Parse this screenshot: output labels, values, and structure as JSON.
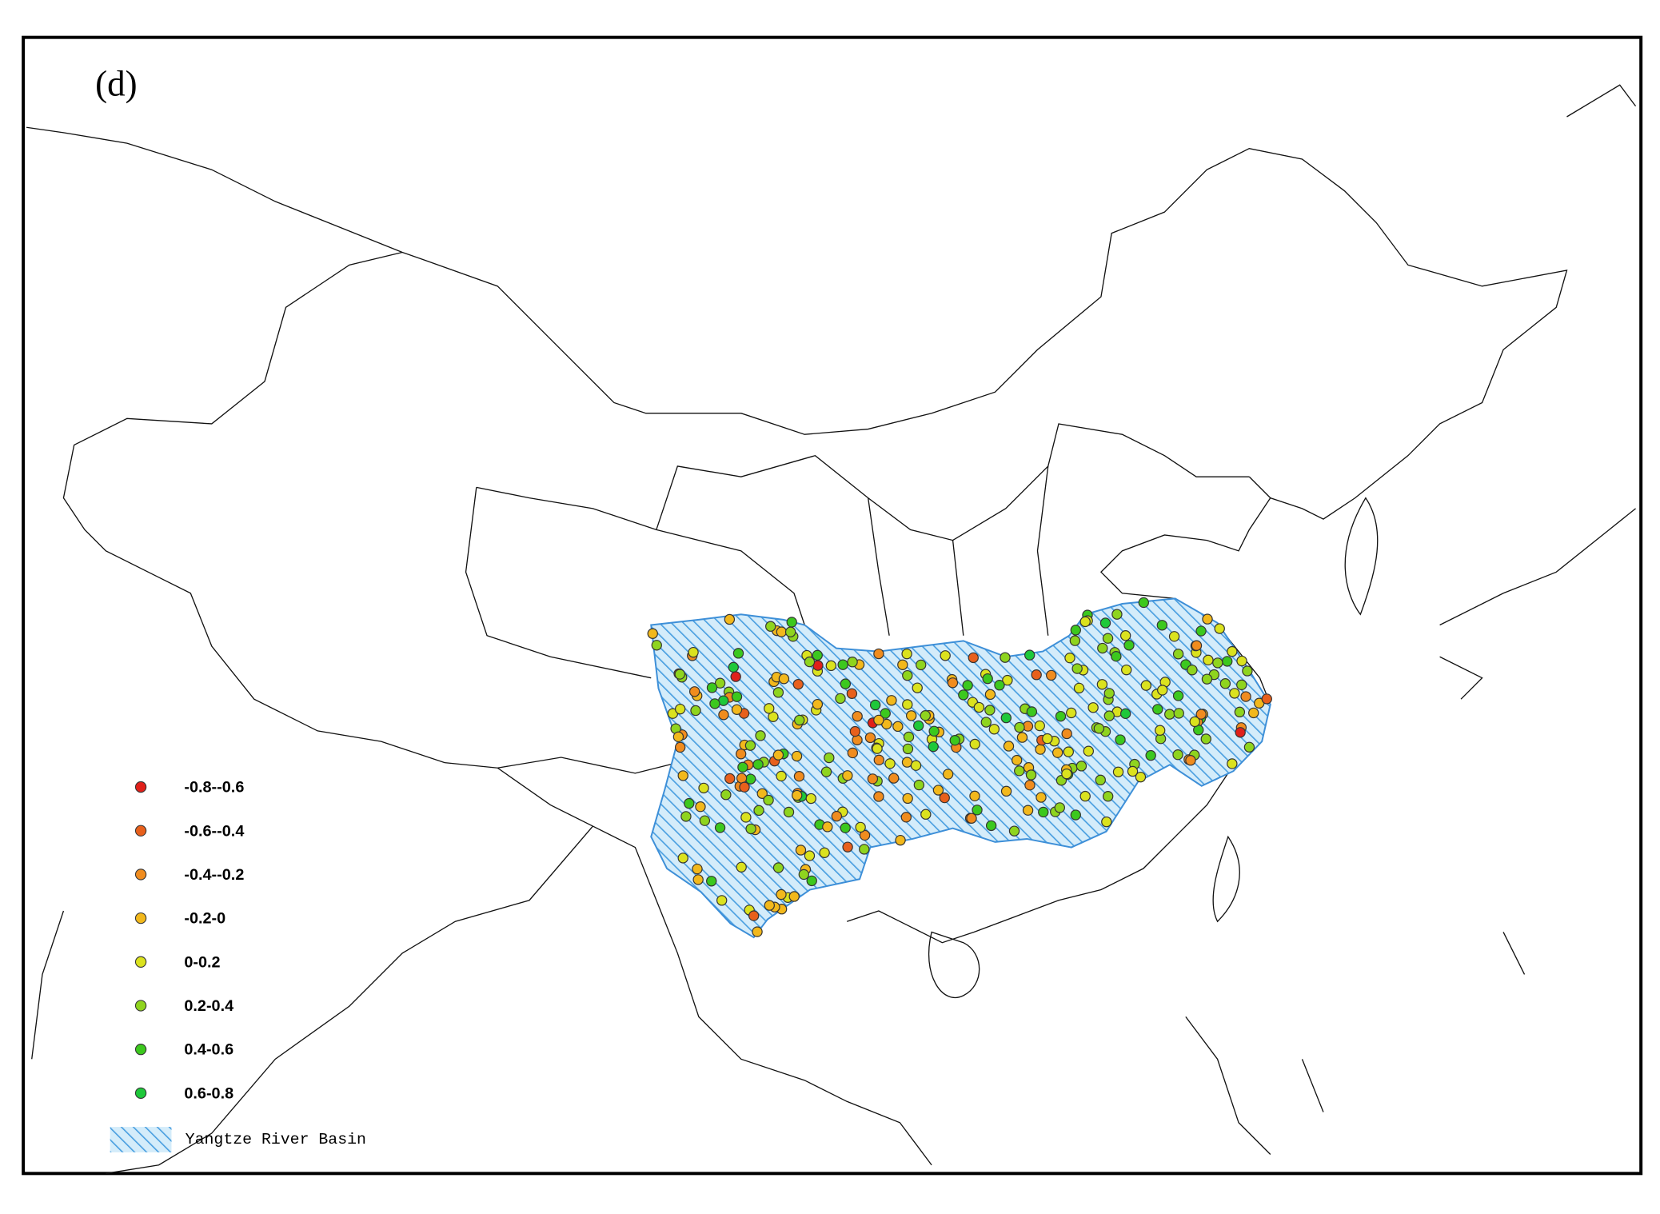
{
  "panel_label": "(d)",
  "legend": {
    "items": [
      {
        "label": "-0.8--0.6",
        "color": "#e0201a"
      },
      {
        "label": "-0.6--0.4",
        "color": "#e8601c"
      },
      {
        "label": "-0.4--0.2",
        "color": "#f08c1e"
      },
      {
        "label": "-0.2-0",
        "color": "#f2b81c"
      },
      {
        "label": "0-0.2",
        "color": "#dbe21e"
      },
      {
        "label": "0.2-0.4",
        "color": "#8fd41e"
      },
      {
        "label": "0.4-0.6",
        "color": "#3cc81e"
      },
      {
        "label": "0.6-0.8",
        "color": "#1ec83a"
      }
    ],
    "basin_label": "Yangtze River Basin"
  }
}
